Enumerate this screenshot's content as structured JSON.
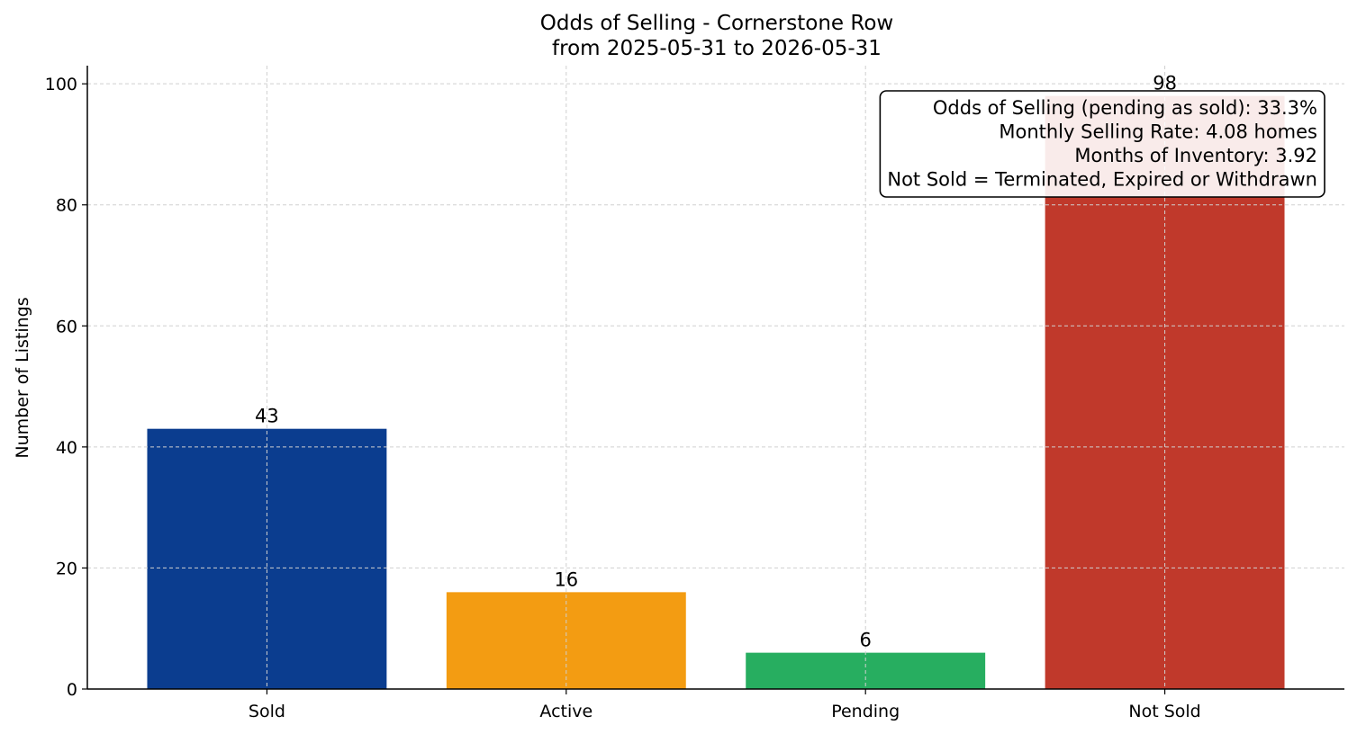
{
  "chart_data": {
    "type": "bar",
    "title": "Odds of Selling - Cornerstone Row",
    "subtitle": "from 2025-05-31 to 2026-05-31",
    "xlabel": "",
    "ylabel": "Number of Listings",
    "categories": [
      "Sold",
      "Active",
      "Pending",
      "Not Sold"
    ],
    "values": [
      43,
      16,
      6,
      98
    ],
    "colors": [
      "#0b3d8f",
      "#f39c12",
      "#27ae60",
      "#c0392b"
    ],
    "ylim": [
      0,
      103
    ],
    "yticks": [
      0,
      20,
      40,
      60,
      80,
      100
    ],
    "grid": true,
    "annotation": {
      "placement": "top-right",
      "lines": [
        "Odds of Selling (pending as sold): 33.3%",
        "Monthly Selling Rate: 4.08 homes",
        "Months of Inventory: 3.92",
        "Not Sold = Terminated, Expired or Withdrawn"
      ]
    }
  }
}
